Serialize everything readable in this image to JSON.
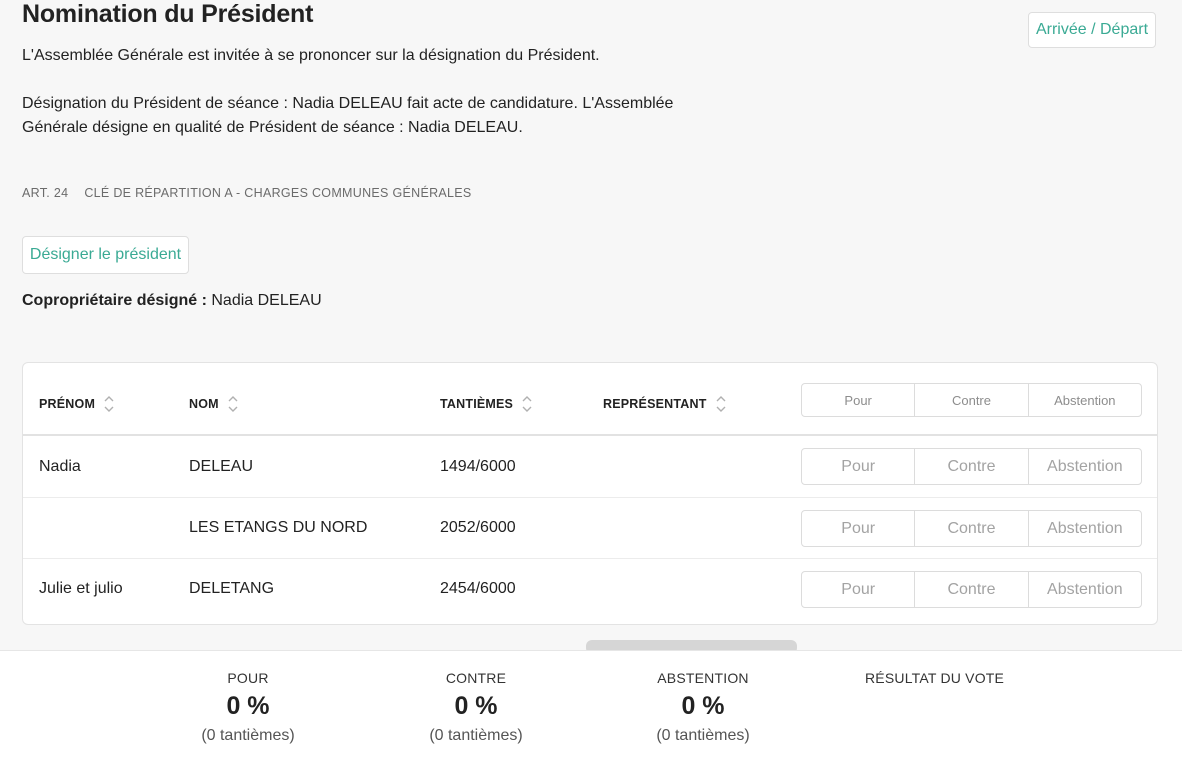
{
  "header": {
    "title": "Nomination du Président",
    "arrival_departure": "Arrivée / Départ"
  },
  "description": {
    "line1": "L'Assemblée Générale est invitée à se prononcer sur la désignation du Président.",
    "line2": "Désignation du Président de séance : Nadia DELEAU fait acte de candidature. L'Assemblée",
    "line3": "Générale désigne en qualité de Président de séance : Nadia DELEAU."
  },
  "meta": {
    "article": "ART. 24",
    "key": "CLÉ DE RÉPARTITION A - CHARGES COMMUNES GÉNÉRALES"
  },
  "actions": {
    "designate_label": "Désigner le président"
  },
  "designated": {
    "label": "Copropriétaire désigné :",
    "name": "Nadia DELEAU"
  },
  "table": {
    "columns": {
      "prenom": "PRÉNOM",
      "nom": "NOM",
      "tantiemes": "TANTIÈMES",
      "representant": "REPRÉSENTANT"
    },
    "vote_options": {
      "pour": "Pour",
      "contre": "Contre",
      "abstention": "Abstention"
    },
    "rows": [
      {
        "prenom": "Nadia",
        "nom": "DELEAU",
        "tantiemes": "1494/6000",
        "representant": ""
      },
      {
        "prenom": "",
        "nom": "LES ETANGS DU NORD",
        "tantiemes": "2052/6000",
        "representant": ""
      },
      {
        "prenom": "Julie et julio",
        "nom": "DELETANG",
        "tantiemes": "2454/6000",
        "representant": ""
      }
    ]
  },
  "summary": {
    "pour": {
      "label": "POUR",
      "percent": "0 %",
      "tantiemes": "(0 tantièmes)"
    },
    "contre": {
      "label": "CONTRE",
      "percent": "0 %",
      "tantiemes": "(0 tantièmes)"
    },
    "abstention": {
      "label": "ABSTENTION",
      "percent": "0 %",
      "tantiemes": "(0 tantièmes)"
    },
    "result_label": "RÉSULTAT DU VOTE"
  },
  "colors": {
    "accent": "#3aaa94"
  }
}
